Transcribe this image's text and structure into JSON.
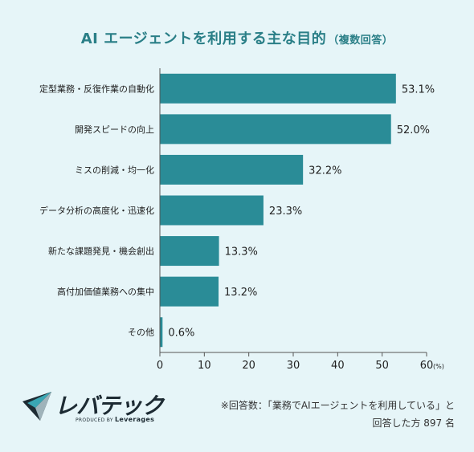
{
  "title": {
    "main": "AI エージェントを利用する主な目的",
    "sub": "（複数回答）"
  },
  "chart_data": {
    "type": "bar",
    "orientation": "horizontal",
    "categories": [
      "定型業務・反復作業の自動化",
      "開発スピードの向上",
      "ミスの削減・均一化",
      "データ分析の高度化・迅速化",
      "新たな課題発見・機会創出",
      "高付加価値業務への集中",
      "その他"
    ],
    "values": [
      53.1,
      52.0,
      32.2,
      23.3,
      13.3,
      13.2,
      0.6
    ],
    "value_labels": [
      "53.1%",
      "52.0%",
      "32.2%",
      "23.3%",
      "13.3%",
      "13.2%",
      "0.6%"
    ],
    "xlim": [
      0,
      60
    ],
    "xticks": [
      0,
      10,
      20,
      30,
      40,
      50,
      60
    ],
    "x_unit": "(%)",
    "bar_color": "#2a8c97",
    "grid": false
  },
  "logo": {
    "name": "レバテック",
    "tagline_prefix": "PRODUCED BY",
    "tagline_brand": "Leverages"
  },
  "note": {
    "line1": "※回答数：「業務でAIエージェントを利用している」と",
    "line2": "回答した方 897 名"
  }
}
